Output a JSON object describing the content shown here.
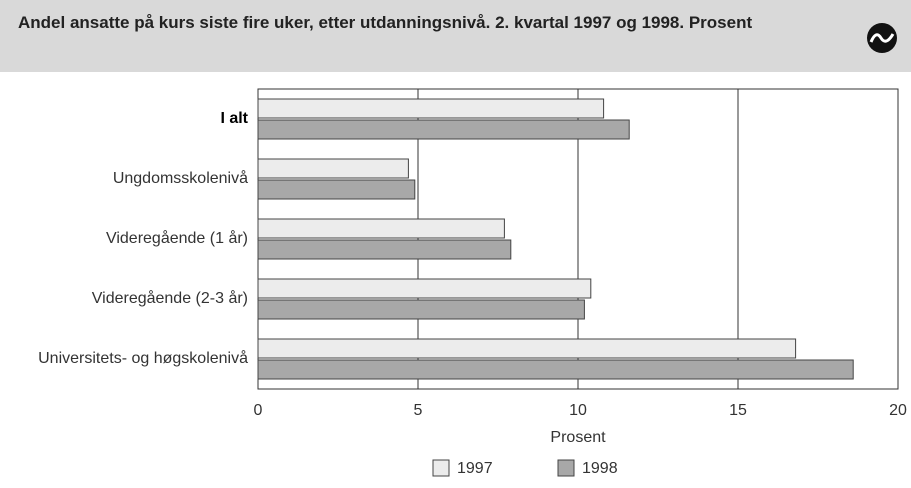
{
  "chart_data": {
    "type": "hbar",
    "title": "Andel ansatte på kurs siste fire uker, etter utdanningsnivå. 2. kvartal 1997 og 1998. Prosent",
    "categories": [
      "I alt",
      "Ungdomsskolenivå",
      "Videregående (1 år)",
      "Videregående (2-3 år)",
      "Universitets- og høgskolenivå"
    ],
    "series": [
      {
        "name": "1997",
        "color": "#ececec",
        "values": [
          10.8,
          4.7,
          7.7,
          10.4,
          16.8
        ]
      },
      {
        "name": "1998",
        "color": "#a8a8a8",
        "values": [
          11.6,
          4.9,
          7.9,
          10.2,
          18.6
        ]
      }
    ],
    "xlabel": "Prosent",
    "xlim": [
      0,
      20
    ],
    "xticks": [
      0,
      5,
      10,
      15,
      20
    ],
    "grid": true,
    "legend": "bottom"
  }
}
